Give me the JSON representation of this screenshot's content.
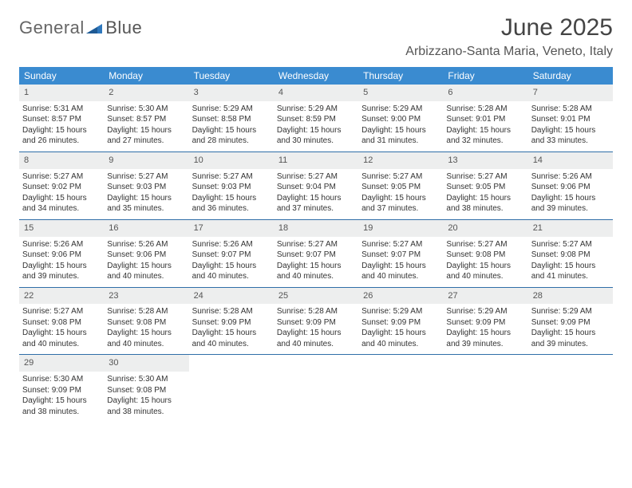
{
  "logo": {
    "text1": "General",
    "text2": "Blue"
  },
  "title": "June 2025",
  "location": "Arbizzano-Santa Maria, Veneto, Italy",
  "header_bg": "#3a8bd0",
  "daynum_bg": "#edeeee",
  "rule_color": "#2f6ea8",
  "day_headers": [
    "Sunday",
    "Monday",
    "Tuesday",
    "Wednesday",
    "Thursday",
    "Friday",
    "Saturday"
  ],
  "weeks": [
    [
      {
        "n": "1",
        "sr": "Sunrise: 5:31 AM",
        "ss": "Sunset: 8:57 PM",
        "dl": "Daylight: 15 hours and 26 minutes."
      },
      {
        "n": "2",
        "sr": "Sunrise: 5:30 AM",
        "ss": "Sunset: 8:57 PM",
        "dl": "Daylight: 15 hours and 27 minutes."
      },
      {
        "n": "3",
        "sr": "Sunrise: 5:29 AM",
        "ss": "Sunset: 8:58 PM",
        "dl": "Daylight: 15 hours and 28 minutes."
      },
      {
        "n": "4",
        "sr": "Sunrise: 5:29 AM",
        "ss": "Sunset: 8:59 PM",
        "dl": "Daylight: 15 hours and 30 minutes."
      },
      {
        "n": "5",
        "sr": "Sunrise: 5:29 AM",
        "ss": "Sunset: 9:00 PM",
        "dl": "Daylight: 15 hours and 31 minutes."
      },
      {
        "n": "6",
        "sr": "Sunrise: 5:28 AM",
        "ss": "Sunset: 9:01 PM",
        "dl": "Daylight: 15 hours and 32 minutes."
      },
      {
        "n": "7",
        "sr": "Sunrise: 5:28 AM",
        "ss": "Sunset: 9:01 PM",
        "dl": "Daylight: 15 hours and 33 minutes."
      }
    ],
    [
      {
        "n": "8",
        "sr": "Sunrise: 5:27 AM",
        "ss": "Sunset: 9:02 PM",
        "dl": "Daylight: 15 hours and 34 minutes."
      },
      {
        "n": "9",
        "sr": "Sunrise: 5:27 AM",
        "ss": "Sunset: 9:03 PM",
        "dl": "Daylight: 15 hours and 35 minutes."
      },
      {
        "n": "10",
        "sr": "Sunrise: 5:27 AM",
        "ss": "Sunset: 9:03 PM",
        "dl": "Daylight: 15 hours and 36 minutes."
      },
      {
        "n": "11",
        "sr": "Sunrise: 5:27 AM",
        "ss": "Sunset: 9:04 PM",
        "dl": "Daylight: 15 hours and 37 minutes."
      },
      {
        "n": "12",
        "sr": "Sunrise: 5:27 AM",
        "ss": "Sunset: 9:05 PM",
        "dl": "Daylight: 15 hours and 37 minutes."
      },
      {
        "n": "13",
        "sr": "Sunrise: 5:27 AM",
        "ss": "Sunset: 9:05 PM",
        "dl": "Daylight: 15 hours and 38 minutes."
      },
      {
        "n": "14",
        "sr": "Sunrise: 5:26 AM",
        "ss": "Sunset: 9:06 PM",
        "dl": "Daylight: 15 hours and 39 minutes."
      }
    ],
    [
      {
        "n": "15",
        "sr": "Sunrise: 5:26 AM",
        "ss": "Sunset: 9:06 PM",
        "dl": "Daylight: 15 hours and 39 minutes."
      },
      {
        "n": "16",
        "sr": "Sunrise: 5:26 AM",
        "ss": "Sunset: 9:06 PM",
        "dl": "Daylight: 15 hours and 40 minutes."
      },
      {
        "n": "17",
        "sr": "Sunrise: 5:26 AM",
        "ss": "Sunset: 9:07 PM",
        "dl": "Daylight: 15 hours and 40 minutes."
      },
      {
        "n": "18",
        "sr": "Sunrise: 5:27 AM",
        "ss": "Sunset: 9:07 PM",
        "dl": "Daylight: 15 hours and 40 minutes."
      },
      {
        "n": "19",
        "sr": "Sunrise: 5:27 AM",
        "ss": "Sunset: 9:07 PM",
        "dl": "Daylight: 15 hours and 40 minutes."
      },
      {
        "n": "20",
        "sr": "Sunrise: 5:27 AM",
        "ss": "Sunset: 9:08 PM",
        "dl": "Daylight: 15 hours and 40 minutes."
      },
      {
        "n": "21",
        "sr": "Sunrise: 5:27 AM",
        "ss": "Sunset: 9:08 PM",
        "dl": "Daylight: 15 hours and 41 minutes."
      }
    ],
    [
      {
        "n": "22",
        "sr": "Sunrise: 5:27 AM",
        "ss": "Sunset: 9:08 PM",
        "dl": "Daylight: 15 hours and 40 minutes."
      },
      {
        "n": "23",
        "sr": "Sunrise: 5:28 AM",
        "ss": "Sunset: 9:08 PM",
        "dl": "Daylight: 15 hours and 40 minutes."
      },
      {
        "n": "24",
        "sr": "Sunrise: 5:28 AM",
        "ss": "Sunset: 9:09 PM",
        "dl": "Daylight: 15 hours and 40 minutes."
      },
      {
        "n": "25",
        "sr": "Sunrise: 5:28 AM",
        "ss": "Sunset: 9:09 PM",
        "dl": "Daylight: 15 hours and 40 minutes."
      },
      {
        "n": "26",
        "sr": "Sunrise: 5:29 AM",
        "ss": "Sunset: 9:09 PM",
        "dl": "Daylight: 15 hours and 40 minutes."
      },
      {
        "n": "27",
        "sr": "Sunrise: 5:29 AM",
        "ss": "Sunset: 9:09 PM",
        "dl": "Daylight: 15 hours and 39 minutes."
      },
      {
        "n": "28",
        "sr": "Sunrise: 5:29 AM",
        "ss": "Sunset: 9:09 PM",
        "dl": "Daylight: 15 hours and 39 minutes."
      }
    ],
    [
      {
        "n": "29",
        "sr": "Sunrise: 5:30 AM",
        "ss": "Sunset: 9:09 PM",
        "dl": "Daylight: 15 hours and 38 minutes."
      },
      {
        "n": "30",
        "sr": "Sunrise: 5:30 AM",
        "ss": "Sunset: 9:08 PM",
        "dl": "Daylight: 15 hours and 38 minutes."
      },
      null,
      null,
      null,
      null,
      null
    ]
  ]
}
